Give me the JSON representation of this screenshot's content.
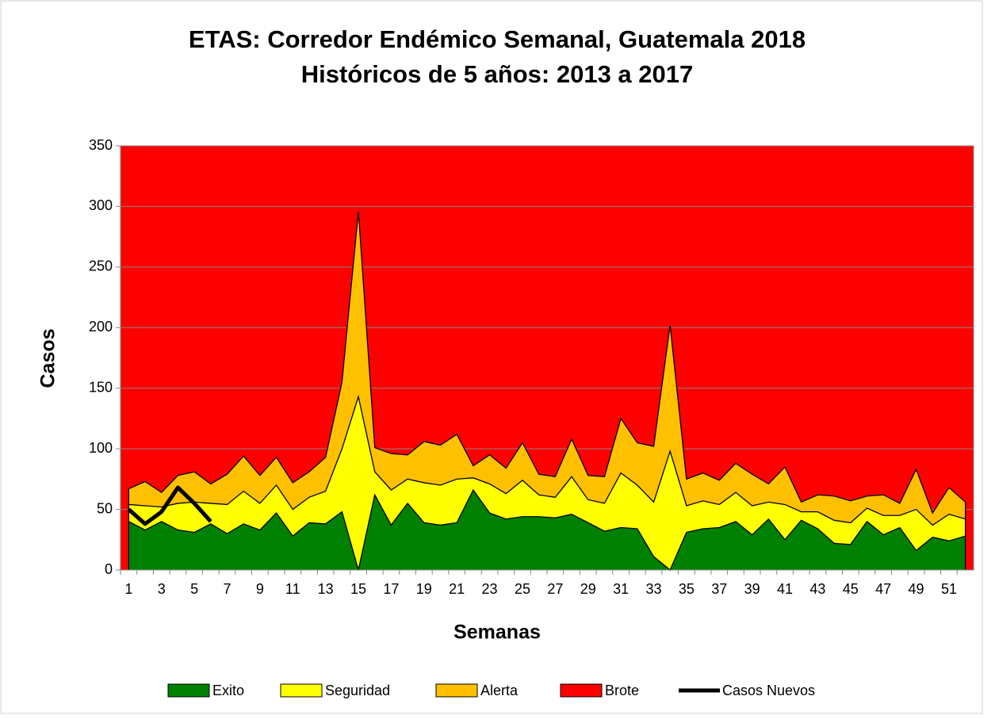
{
  "chart_data": {
    "type": "stacked_area",
    "title": "ETAS: Corredor Endémico Semanal, Guatemala 2018",
    "subtitle": "Históricos de 5 años: 2013 a 2017",
    "x_label": "Semanas",
    "y_label": "Casos",
    "categories": [
      1,
      null,
      3,
      null,
      5,
      null,
      7,
      null,
      9,
      null,
      11,
      null,
      13,
      null,
      15,
      null,
      17,
      null,
      19,
      null,
      21,
      null,
      23,
      null,
      25,
      null,
      27,
      null,
      29,
      null,
      31,
      null,
      33,
      null,
      35,
      null,
      37,
      null,
      39,
      null,
      41,
      null,
      43,
      null,
      45,
      null,
      47,
      null,
      49,
      null,
      51,
      null
    ],
    "ylim": [
      0,
      350
    ],
    "yticks": [
      0,
      50,
      100,
      150,
      200,
      250,
      300,
      350
    ],
    "grid": true,
    "background_series": {
      "name": "Brote",
      "color": "#ff0000"
    },
    "series": [
      {
        "name": "Exito",
        "color": "#008000",
        "values": [
          40,
          33,
          40,
          33,
          31,
          38,
          30,
          38,
          33,
          47,
          28,
          39,
          38,
          48,
          0,
          62,
          37,
          55,
          39,
          37,
          39,
          66,
          47,
          42,
          44,
          44,
          43,
          46,
          39,
          32,
          35,
          34,
          11,
          0,
          31,
          34,
          35,
          40,
          29,
          42,
          25,
          41,
          34,
          22,
          21,
          40,
          29,
          35,
          16,
          27,
          24,
          28
        ]
      },
      {
        "name": "Seguridad",
        "color": "#ffff00",
        "values": [
          14,
          20,
          12,
          22,
          25,
          17,
          24,
          27,
          22,
          23,
          22,
          21,
          27,
          52,
          143,
          19,
          29,
          20,
          33,
          33,
          36,
          10,
          24,
          21,
          30,
          18,
          17,
          31,
          19,
          23,
          45,
          36,
          45,
          98,
          22,
          23,
          19,
          24,
          24,
          14,
          29,
          7,
          14,
          19,
          18,
          11,
          16,
          10,
          34,
          10,
          22,
          14
        ]
      },
      {
        "name": "Alerta",
        "color": "#ffc000",
        "values": [
          13,
          20,
          12,
          23,
          25,
          16,
          25,
          29,
          23,
          23,
          22,
          21,
          28,
          55,
          153,
          20,
          30,
          20,
          34,
          33,
          37,
          10,
          24,
          21,
          31,
          17,
          17,
          31,
          20,
          22,
          45,
          35,
          46,
          104,
          22,
          23,
          20,
          24,
          26,
          15,
          31,
          8,
          14,
          20,
          18,
          10,
          17,
          10,
          33,
          10,
          22,
          14
        ]
      }
    ],
    "line_series": {
      "name": "Casos Nuevos",
      "color": "#000000",
      "values": [
        50,
        38,
        48,
        68,
        55,
        40,
        null,
        null,
        null,
        null,
        null,
        null,
        null,
        null,
        null,
        null,
        null,
        null,
        null,
        null,
        null,
        null,
        null,
        null,
        null,
        null,
        null,
        null,
        null,
        null,
        null,
        null,
        null,
        null,
        null,
        null,
        null,
        null,
        null,
        null,
        null,
        null,
        null,
        null,
        null,
        null,
        null,
        null,
        null,
        null,
        null,
        null
      ]
    }
  }
}
